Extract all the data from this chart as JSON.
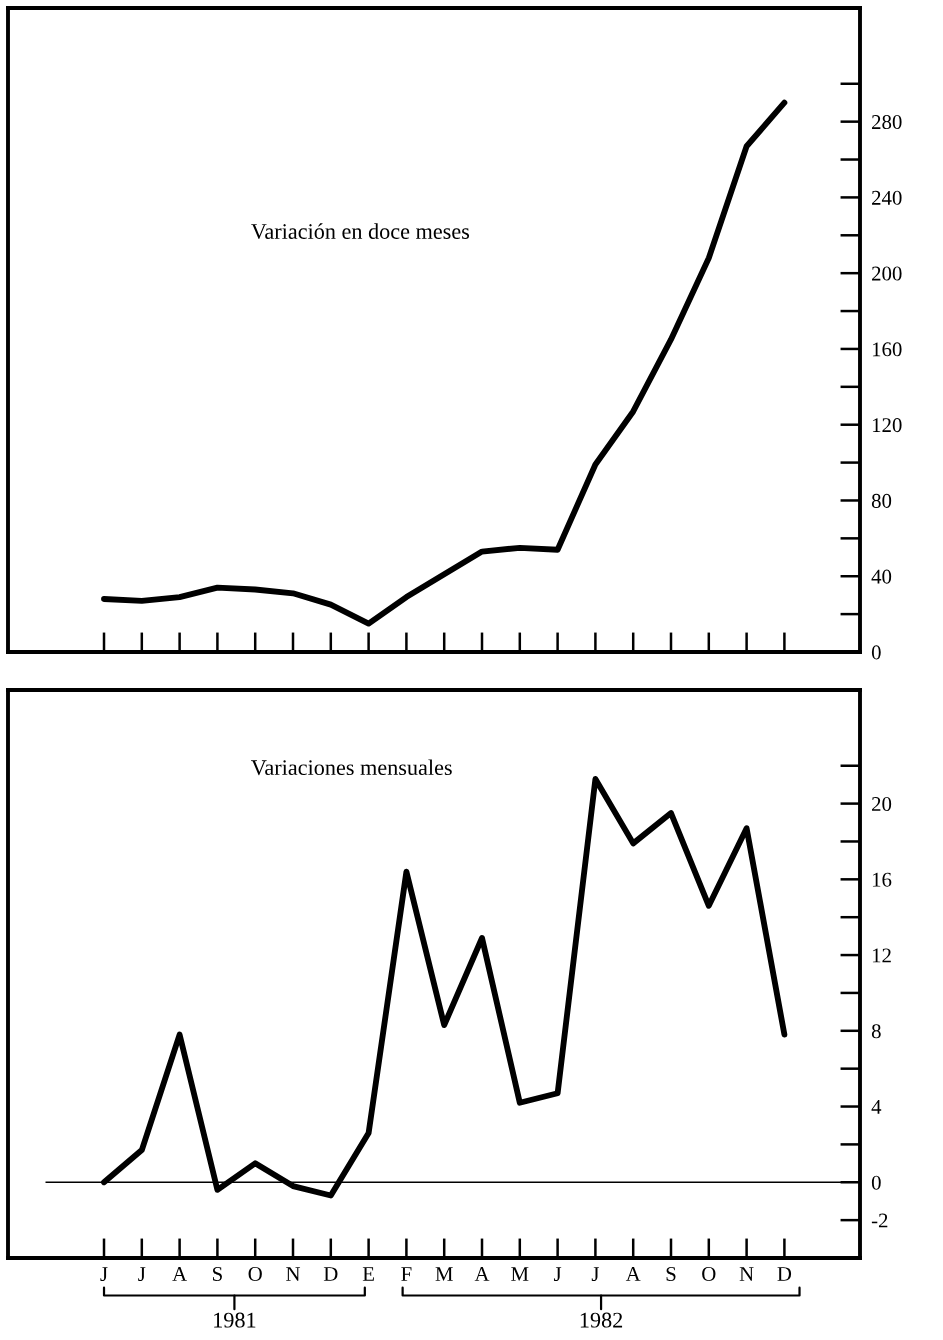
{
  "chart_data": [
    {
      "type": "line",
      "title": "Variación en doce meses",
      "categories": [
        null,
        null,
        null,
        null,
        null,
        null,
        null,
        null,
        null,
        null,
        null,
        null,
        null,
        null,
        null,
        null,
        null,
        null,
        null
      ],
      "series": [
        {
          "color": "#000000",
          "values": [
            28,
            27,
            29,
            34,
            33,
            31,
            25,
            15,
            29,
            41,
            53,
            55,
            54,
            99,
            127,
            165,
            208,
            267,
            290
          ]
        }
      ],
      "ylim": [
        0,
        340
      ],
      "yticks": [
        0,
        40,
        80,
        120,
        160,
        200,
        240,
        280
      ],
      "tick_labels": "y",
      "grid": false,
      "legend": false,
      "marker": "none",
      "line_style": "solid"
    },
    {
      "type": "line",
      "title": "Variaciones mensuales",
      "categories": [
        "J",
        "J",
        "A",
        "S",
        "O",
        "N",
        "D",
        "E",
        "F",
        "M",
        "A",
        "M",
        "J",
        "J",
        "A",
        "S",
        "O",
        "N",
        "D"
      ],
      "series": [
        {
          "color": "#000000",
          "values": [
            0,
            1.7,
            7.8,
            -0.4,
            1.0,
            -0.2,
            -0.7,
            2.6,
            16.4,
            8.3,
            12.9,
            4.2,
            4.7,
            21.3,
            17.9,
            19.5,
            14.6,
            18.7,
            7.8
          ]
        }
      ],
      "ylim": [
        -4,
        26
      ],
      "yticks": [
        -2,
        0,
        4,
        8,
        12,
        16,
        20
      ],
      "ref_lines": [
        {
          "axis": "y",
          "value": 0,
          "color": "#000000",
          "line_style": "solid"
        }
      ],
      "annotations": [
        "1981",
        "1982"
      ],
      "grid": false,
      "legend": false,
      "marker": "none",
      "line_style": "solid"
    }
  ]
}
